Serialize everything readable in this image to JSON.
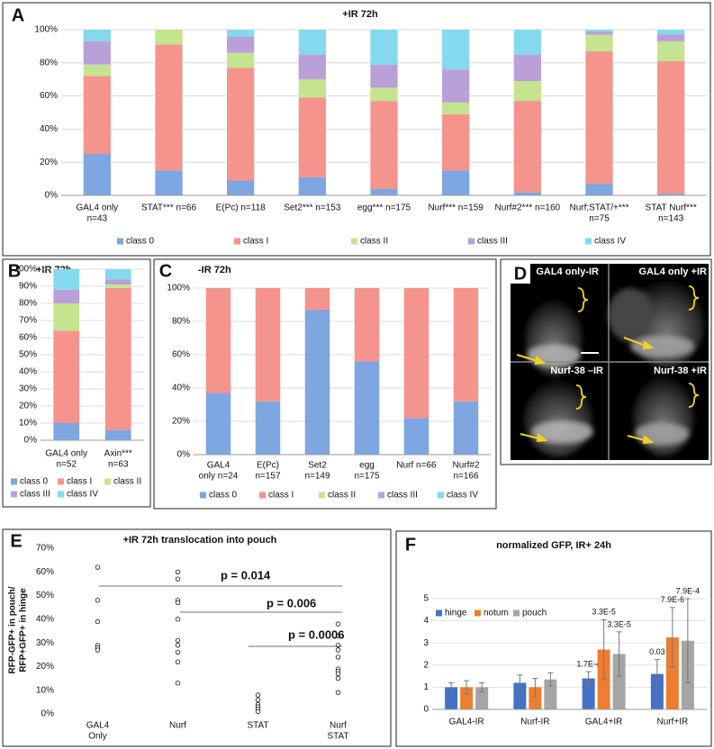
{
  "chart_data": [
    {
      "panel": "A",
      "type": "stacked_bar",
      "title": "+IR 72h",
      "categories": [
        [
          "GAL4 only",
          "n=43"
        ],
        [
          "STAT*** n=66"
        ],
        [
          "E(Pc) n=118"
        ],
        [
          "Set2*** n=153"
        ],
        [
          "egg*** n=175"
        ],
        [
          "Nurf*** n=159"
        ],
        [
          "Nurf#2*** n=160"
        ],
        [
          "Nurf;STAT/+***",
          "n=75"
        ],
        [
          "STAT Nurf***",
          "n=143"
        ]
      ],
      "series": [
        {
          "name": "class 0",
          "color": "#7ea6e0",
          "values": [
            25,
            15,
            9,
            11,
            4,
            15,
            2,
            7,
            1
          ]
        },
        {
          "name": "class I",
          "color": "#f4948c",
          "values": [
            47,
            76,
            68,
            48,
            53,
            34,
            55,
            80,
            80
          ]
        },
        {
          "name": "class II",
          "color": "#c5e48f",
          "values": [
            7,
            9,
            9,
            11,
            8,
            7,
            12,
            10,
            12
          ]
        },
        {
          "name": "class III",
          "color": "#b9a0d8",
          "values": [
            14,
            0,
            10,
            15,
            14,
            20,
            16,
            2,
            4
          ]
        },
        {
          "name": "class IV",
          "color": "#84d9ee",
          "values": [
            7,
            0,
            4,
            15,
            21,
            24,
            15,
            1,
            3
          ]
        }
      ],
      "ylim": [
        0,
        100
      ],
      "yticks": [
        {
          "value": 0,
          "label": "0%"
        },
        {
          "value": 20,
          "label": "20%"
        },
        {
          "value": 40,
          "label": "40%"
        },
        {
          "value": 60,
          "label": "60%"
        },
        {
          "value": 80,
          "label": "80%"
        },
        {
          "value": 100,
          "label": "100%"
        }
      ],
      "grid": true,
      "legend": "bottom"
    },
    {
      "panel": "B",
      "type": "stacked_bar",
      "title": "+IR 72h",
      "categories": [
        [
          "GAL4 only",
          "n=52"
        ],
        [
          "Axin***",
          "n=63"
        ]
      ],
      "series": [
        {
          "name": "class 0",
          "color": "#7ea6e0",
          "values": [
            10,
            6
          ]
        },
        {
          "name": "class I",
          "color": "#f4948c",
          "values": [
            54,
            83
          ]
        },
        {
          "name": "class II",
          "color": "#c5e48f",
          "values": [
            16,
            2
          ]
        },
        {
          "name": "class III",
          "color": "#b9a0d8",
          "values": [
            8,
            3
          ]
        },
        {
          "name": "class IV",
          "color": "#84d9ee",
          "values": [
            12,
            6
          ]
        }
      ],
      "ylim": [
        0,
        100
      ],
      "yticks": [
        {
          "value": 0,
          "label": "0%"
        },
        {
          "value": 10,
          "label": "10%"
        },
        {
          "value": 20,
          "label": "20%"
        },
        {
          "value": 30,
          "label": "30%"
        },
        {
          "value": 40,
          "label": "40%"
        },
        {
          "value": 50,
          "label": "50%"
        },
        {
          "value": 60,
          "label": "60%"
        },
        {
          "value": 70,
          "label": "70%"
        },
        {
          "value": 80,
          "label": "80%"
        },
        {
          "value": 90,
          "label": "90%"
        },
        {
          "value": 100,
          "label": "100%"
        }
      ],
      "grid": true,
      "legend": "bottom"
    },
    {
      "panel": "C",
      "type": "stacked_bar",
      "title": "-IR 72h",
      "categories": [
        [
          "GAL4",
          "only n=24"
        ],
        [
          "E(Pc)",
          "n=157"
        ],
        [
          "Set2",
          "n=149"
        ],
        [
          "egg",
          "n=175"
        ],
        [
          "Nurf n=66"
        ],
        [
          "Nurf#2",
          "n=166"
        ]
      ],
      "series": [
        {
          "name": "class 0",
          "color": "#7ea6e0",
          "values": [
            37,
            32,
            87,
            56,
            22,
            32
          ]
        },
        {
          "name": "class I",
          "color": "#f4948c",
          "values": [
            63,
            68,
            13,
            44,
            78,
            68
          ]
        },
        {
          "name": "class II",
          "color": "#c5e48f",
          "values": [
            0,
            0,
            0,
            0,
            0,
            0
          ]
        },
        {
          "name": "class III",
          "color": "#b9a0d8",
          "values": [
            0,
            0,
            0,
            0,
            0,
            0
          ]
        },
        {
          "name": "class IV",
          "color": "#84d9ee",
          "values": [
            0,
            0,
            0,
            0,
            0,
            0
          ]
        }
      ],
      "ylim": [
        0,
        100
      ],
      "yticks": [
        {
          "value": 0,
          "label": "0%"
        },
        {
          "value": 20,
          "label": "20%"
        },
        {
          "value": 40,
          "label": "40%"
        },
        {
          "value": 60,
          "label": "60%"
        },
        {
          "value": 80,
          "label": "80%"
        },
        {
          "value": 100,
          "label": "100%"
        }
      ],
      "grid": true,
      "legend": "bottom"
    },
    {
      "panel": "E",
      "type": "strip",
      "title": "+IR 72h translocation into pouch",
      "y_label": [
        "RFP-GFP+ in pouch/",
        "RFP+GFP+ in hinge"
      ],
      "categories": [
        [
          "GAL4",
          "Only"
        ],
        [
          "Nurf"
        ],
        [
          "STAT"
        ],
        [
          "Nurf",
          "STAT"
        ]
      ],
      "values": [
        [
          62,
          48,
          39,
          29,
          28,
          27
        ],
        [
          60,
          57,
          48,
          47,
          40,
          31,
          29,
          26,
          22,
          13
        ],
        [
          8,
          6,
          4,
          3,
          2,
          1
        ],
        [
          38,
          33,
          29,
          27,
          24,
          19,
          18,
          17,
          15,
          9
        ]
      ],
      "annotations": [
        "p = 0.014",
        "p = 0.006",
        "p = 0.0006"
      ],
      "ylim": [
        0,
        70
      ],
      "yticks": [
        {
          "value": 0,
          "label": "0%"
        },
        {
          "value": 10,
          "label": "10%"
        },
        {
          "value": 20,
          "label": "20%"
        },
        {
          "value": 30,
          "label": "30%"
        },
        {
          "value": 40,
          "label": "40%"
        },
        {
          "value": 50,
          "label": "50%"
        },
        {
          "value": 60,
          "label": "60%"
        },
        {
          "value": 70,
          "label": "70%"
        }
      ],
      "grid": false
    },
    {
      "panel": "F",
      "type": "bar",
      "title": "normalized GFP, IR+ 24h",
      "categories": [
        "GAL4-IR",
        "Nurf-IR",
        "GAL4+IR",
        "Nurf+IR"
      ],
      "series": [
        {
          "name": "hinge",
          "color": "#4472c4",
          "values": [
            1.0,
            1.2,
            1.4,
            1.6
          ],
          "errors": [
            0.2,
            0.35,
            0.3,
            0.65
          ],
          "pvalues": [
            null,
            null,
            "1.7E-4",
            "0.03"
          ]
        },
        {
          "name": "notum",
          "color": "#ed7d31",
          "values": [
            1.0,
            1.0,
            2.7,
            3.25
          ],
          "errors": [
            0.3,
            0.4,
            1.35,
            1.35
          ],
          "pvalues": [
            null,
            null,
            "3.3E-5",
            "7.9E-6"
          ]
        },
        {
          "name": "pouch",
          "color": "#a5a5a5",
          "values": [
            1.0,
            1.35,
            2.5,
            3.1
          ],
          "errors": [
            0.2,
            0.3,
            1.0,
            1.9
          ],
          "pvalues": [
            null,
            null,
            "3.3E-5",
            "7.9E-4"
          ]
        }
      ],
      "ylim": [
        0,
        5
      ],
      "yticks": [
        0,
        1,
        2,
        3,
        4,
        5
      ],
      "grid": true,
      "legend": "top-left"
    }
  ],
  "images": {
    "panel": "D",
    "labels": [
      "GAL4 only-IR",
      "GAL4 only +IR",
      "Nurf-38 –IR",
      "Nurf-38 +IR"
    ]
  }
}
